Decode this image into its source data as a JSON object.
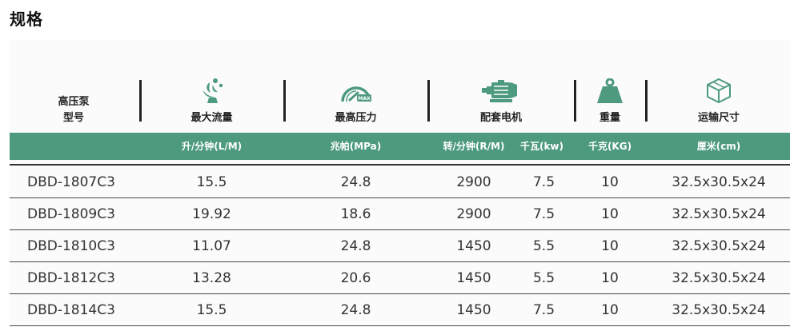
{
  "title": "规格",
  "header": {
    "model": [
      "高压泵",
      "型号"
    ],
    "flow": "最大流量",
    "pressure": "最高压力",
    "motor": "配套电机",
    "weight": "重量",
    "shipping": "运输尺寸",
    "gauge_text": "MAX"
  },
  "units": {
    "flow": "升/分钟(L/M)",
    "pressure": "兆帕(MPa)",
    "rpm": "转/分钟(R/M)",
    "power": "千瓦(kw)",
    "weight": "千克(KG)",
    "size": "厘米(cm)"
  },
  "colors": {
    "accent": "#4d9a7e",
    "text": "#222222"
  },
  "icons": {
    "flow": "water-splash-icon",
    "pressure": "pressure-gauge-icon",
    "motor": "electric-motor-icon",
    "weight": "weight-icon",
    "shipping": "box-icon"
  },
  "rows": [
    {
      "model": "DBD-1807C3",
      "flow": "15.5",
      "pressure": "24.8",
      "rpm": "2900",
      "power": "7.5",
      "weight": "10",
      "size": "32.5x30.5x24"
    },
    {
      "model": "DBD-1809C3",
      "flow": "19.92",
      "pressure": "18.6",
      "rpm": "2900",
      "power": "7.5",
      "weight": "10",
      "size": "32.5x30.5x24"
    },
    {
      "model": "DBD-1810C3",
      "flow": "11.07",
      "pressure": "24.8",
      "rpm": "1450",
      "power": "5.5",
      "weight": "10",
      "size": "32.5x30.5x24"
    },
    {
      "model": "DBD-1812C3",
      "flow": "13.28",
      "pressure": "20.6",
      "rpm": "1450",
      "power": "5.5",
      "weight": "10",
      "size": "32.5x30.5x24"
    },
    {
      "model": "DBD-1814C3",
      "flow": "15.5",
      "pressure": "24.8",
      "rpm": "1450",
      "power": "7.5",
      "weight": "10",
      "size": "32.5x30.5x24"
    }
  ]
}
